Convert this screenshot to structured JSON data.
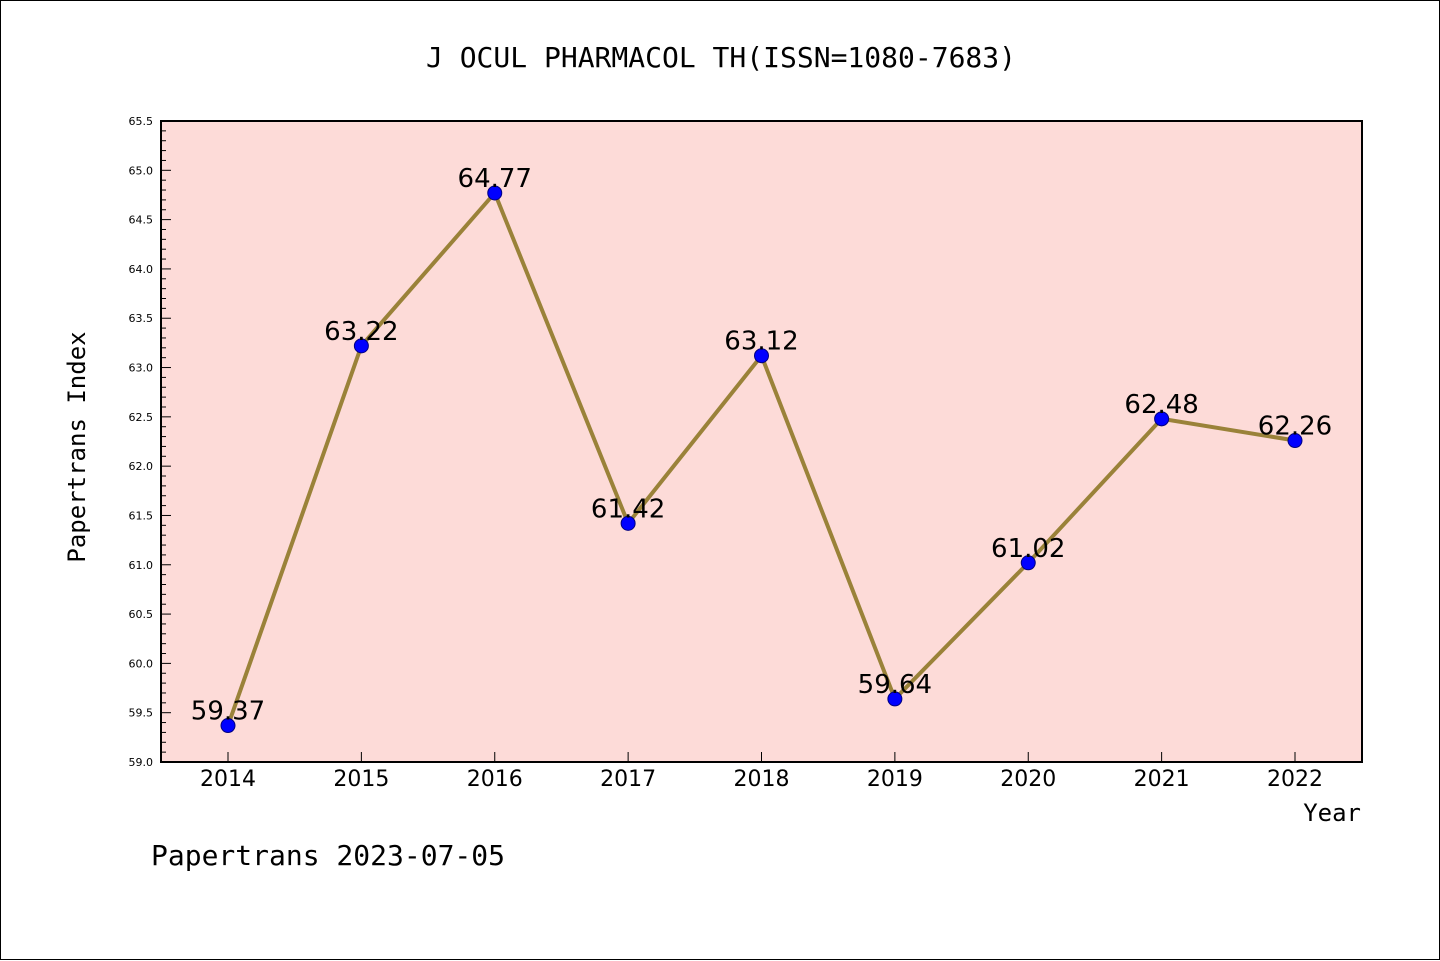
{
  "chart_data": {
    "type": "line",
    "title": "J OCUL PHARMACOL TH(ISSN=1080-7683)",
    "xlabel": "Year",
    "ylabel": "Papertrans Index",
    "x": [
      "2014",
      "2015",
      "2016",
      "2017",
      "2018",
      "2019",
      "2020",
      "2021",
      "2022"
    ],
    "series": [
      {
        "values": [
          59.37,
          63.22,
          64.77,
          61.42,
          63.12,
          59.64,
          61.02,
          62.48,
          62.26
        ],
        "labels": [
          "59.37",
          "63.22",
          "64.77",
          "61.42",
          "63.12",
          "59.64",
          "61.02",
          "62.48",
          "62.26"
        ]
      }
    ],
    "ylim": [
      59.0,
      65.5
    ],
    "yticks": [
      "59.0",
      "59.5",
      "60.0",
      "60.5",
      "61.0",
      "61.5",
      "62.0",
      "62.5",
      "63.0",
      "63.5",
      "64.0",
      "64.5",
      "65.0",
      "65.5"
    ],
    "grid": false,
    "colors": {
      "plot_background": "#fddbd8",
      "line": "#9a8239",
      "marker": "#0000ff",
      "marker_edge": "#000080"
    }
  },
  "footer": "Papertrans 2023-07-05"
}
